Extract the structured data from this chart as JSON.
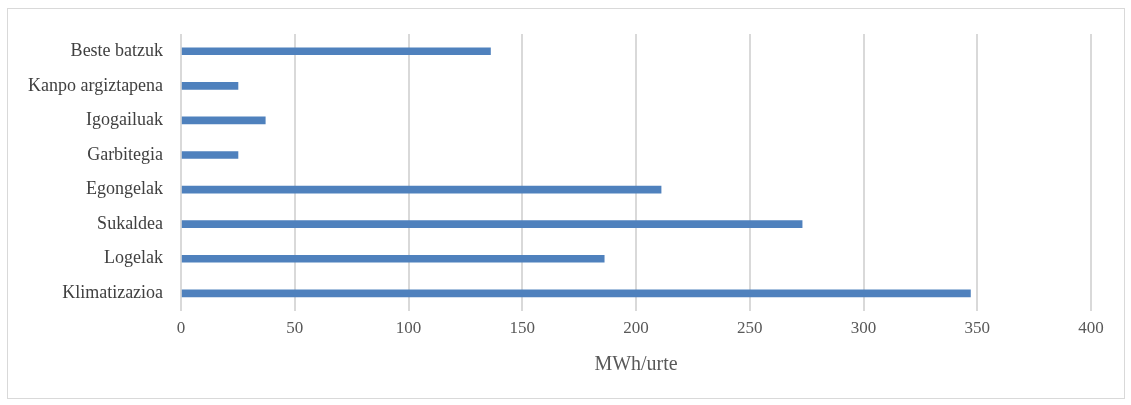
{
  "chart_data": {
    "type": "bar",
    "orientation": "horizontal",
    "xlabel": "MWh/urte",
    "categories": [
      "Beste batzuk",
      "Kanpo argiztapena",
      "Igogailuak",
      "Garbitegia",
      "Egongelak",
      "Sukaldea",
      "Logelak",
      "Klimatizazioa"
    ],
    "values": [
      136,
      25,
      37,
      25,
      211,
      273,
      186,
      347
    ],
    "color": "#4f81bd",
    "xlim": [
      0,
      400
    ],
    "xticks": [
      0,
      50,
      100,
      150,
      200,
      250,
      300,
      350,
      400
    ],
    "grid": "x",
    "legend": false
  }
}
